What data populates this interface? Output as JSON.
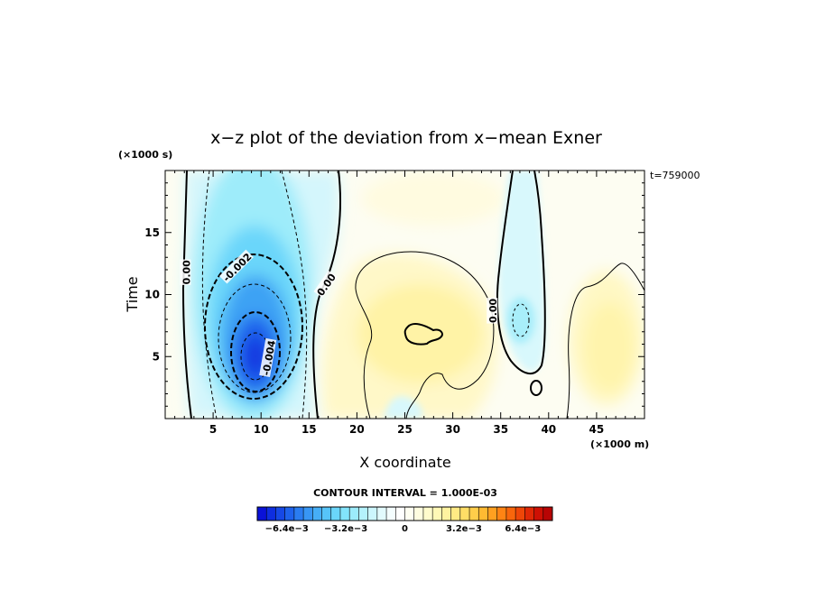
{
  "chart_data": {
    "type": "contour",
    "title": "x−z plot of the deviation from x−mean Exner",
    "xlabel": "X coordinate",
    "ylabel": "Time",
    "x_unit": "(×1000 m)",
    "y_unit": "(×1000 s)",
    "time_label": "t=759000",
    "xlim": [
      0,
      50
    ],
    "ylim": [
      0,
      20
    ],
    "x_ticks": [
      5,
      10,
      15,
      20,
      25,
      30,
      35,
      40,
      45
    ],
    "y_ticks": [
      5,
      10,
      15
    ],
    "contour_interval_label": "CONTOUR INTERVAL = 1.000E-03",
    "contour_labels": [
      {
        "text": "0.00",
        "x": 2.2,
        "y": 11.8,
        "rotate": -90
      },
      {
        "text": "-0.002",
        "x": 7.5,
        "y": 12.2,
        "rotate": -45
      },
      {
        "text": "-0.004",
        "x": 10.8,
        "y": 4.9,
        "rotate": -80
      },
      {
        "text": "0.00",
        "x": 16.8,
        "y": 10.8,
        "rotate": -55
      },
      {
        "text": "0.00",
        "x": 34.2,
        "y": 8.7,
        "rotate": -90
      }
    ],
    "features": [
      {
        "name": "negative-minimum",
        "x": 9.5,
        "y": 5,
        "value": -0.006
      },
      {
        "name": "positive-maximum",
        "x": 26.5,
        "y": 7,
        "value": 0.002
      },
      {
        "name": "secondary-negative",
        "x": 37,
        "y": 8,
        "value": -0.001
      },
      {
        "name": "right-positive",
        "x": 46,
        "y": 5,
        "value": 0.001
      }
    ],
    "colorbar": {
      "min": -0.008,
      "max": 0.008,
      "tick_labels": [
        {
          "text": "−6.4e−3",
          "value": -0.0064
        },
        {
          "text": "−3.2e−3",
          "value": -0.0032
        },
        {
          "text": "0",
          "value": 0
        },
        {
          "text": "3.2e−3",
          "value": 0.0032
        },
        {
          "text": "6.4e−3",
          "value": 0.0064
        }
      ],
      "colors": [
        "#0a12d8",
        "#0e2ee0",
        "#1648e6",
        "#1e62ec",
        "#2a7cf0",
        "#3896f4",
        "#46aef6",
        "#56c4f8",
        "#6ad6fa",
        "#82e4fb",
        "#9cecfb",
        "#b4f2fc",
        "#ccf6fd",
        "#e2fafd",
        "#f4fdfe",
        "#ffffff",
        "#fffff2",
        "#fffde0",
        "#fffbcc",
        "#fff8b6",
        "#fff3a0",
        "#ffea84",
        "#ffde66",
        "#ffce4a",
        "#ffba32",
        "#ffa020",
        "#ff8414",
        "#f8660c",
        "#ee4608",
        "#e02806",
        "#ce1004",
        "#b80404"
      ]
    }
  }
}
